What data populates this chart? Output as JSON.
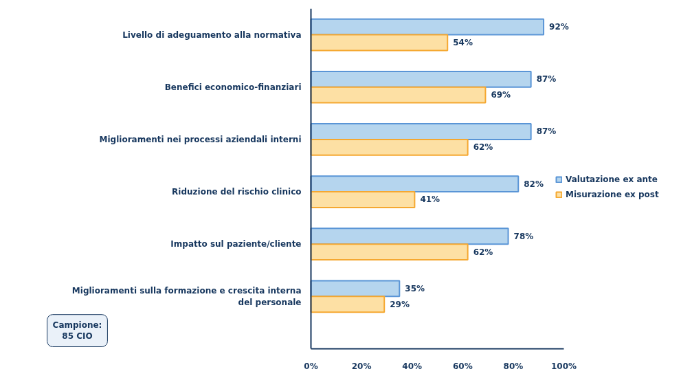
{
  "chart_data": {
    "type": "bar",
    "orientation": "horizontal",
    "categories": [
      "Livello di adeguamento alla normativa",
      "Benefici economico-finanziari",
      "Miglioramenti nei processi aziendali interni",
      "Riduzione del rischio clinico",
      "Impatto sul paziente/cliente",
      "Miglioramenti sulla formazione e crescita interna del personale"
    ],
    "series": [
      {
        "name": "Valutazione ex ante",
        "color": "#b5d5ee",
        "values": [
          92,
          87,
          87,
          82,
          78,
          35
        ],
        "value_labels": [
          "92%",
          "87%",
          "87%",
          "82%",
          "78%",
          "35%"
        ]
      },
      {
        "name": "Misurazione ex post",
        "color": "#fde0a4",
        "values": [
          54,
          69,
          62,
          41,
          62,
          29
        ],
        "value_labels": [
          "54%",
          "69%",
          "62%",
          "41%",
          "62%",
          "29%"
        ]
      }
    ],
    "xlim": [
      0,
      100
    ],
    "xticks": [
      {
        "value": 0,
        "label": "0%"
      },
      {
        "value": 20,
        "label": "20%"
      },
      {
        "value": 40,
        "label": "40%"
      },
      {
        "value": 60,
        "label": "60%"
      },
      {
        "value": 80,
        "label": "80%"
      },
      {
        "value": 100,
        "label": "100%"
      }
    ],
    "grid": false,
    "legend": "right",
    "annotations": [
      "Campione:\n85 CIO"
    ]
  }
}
